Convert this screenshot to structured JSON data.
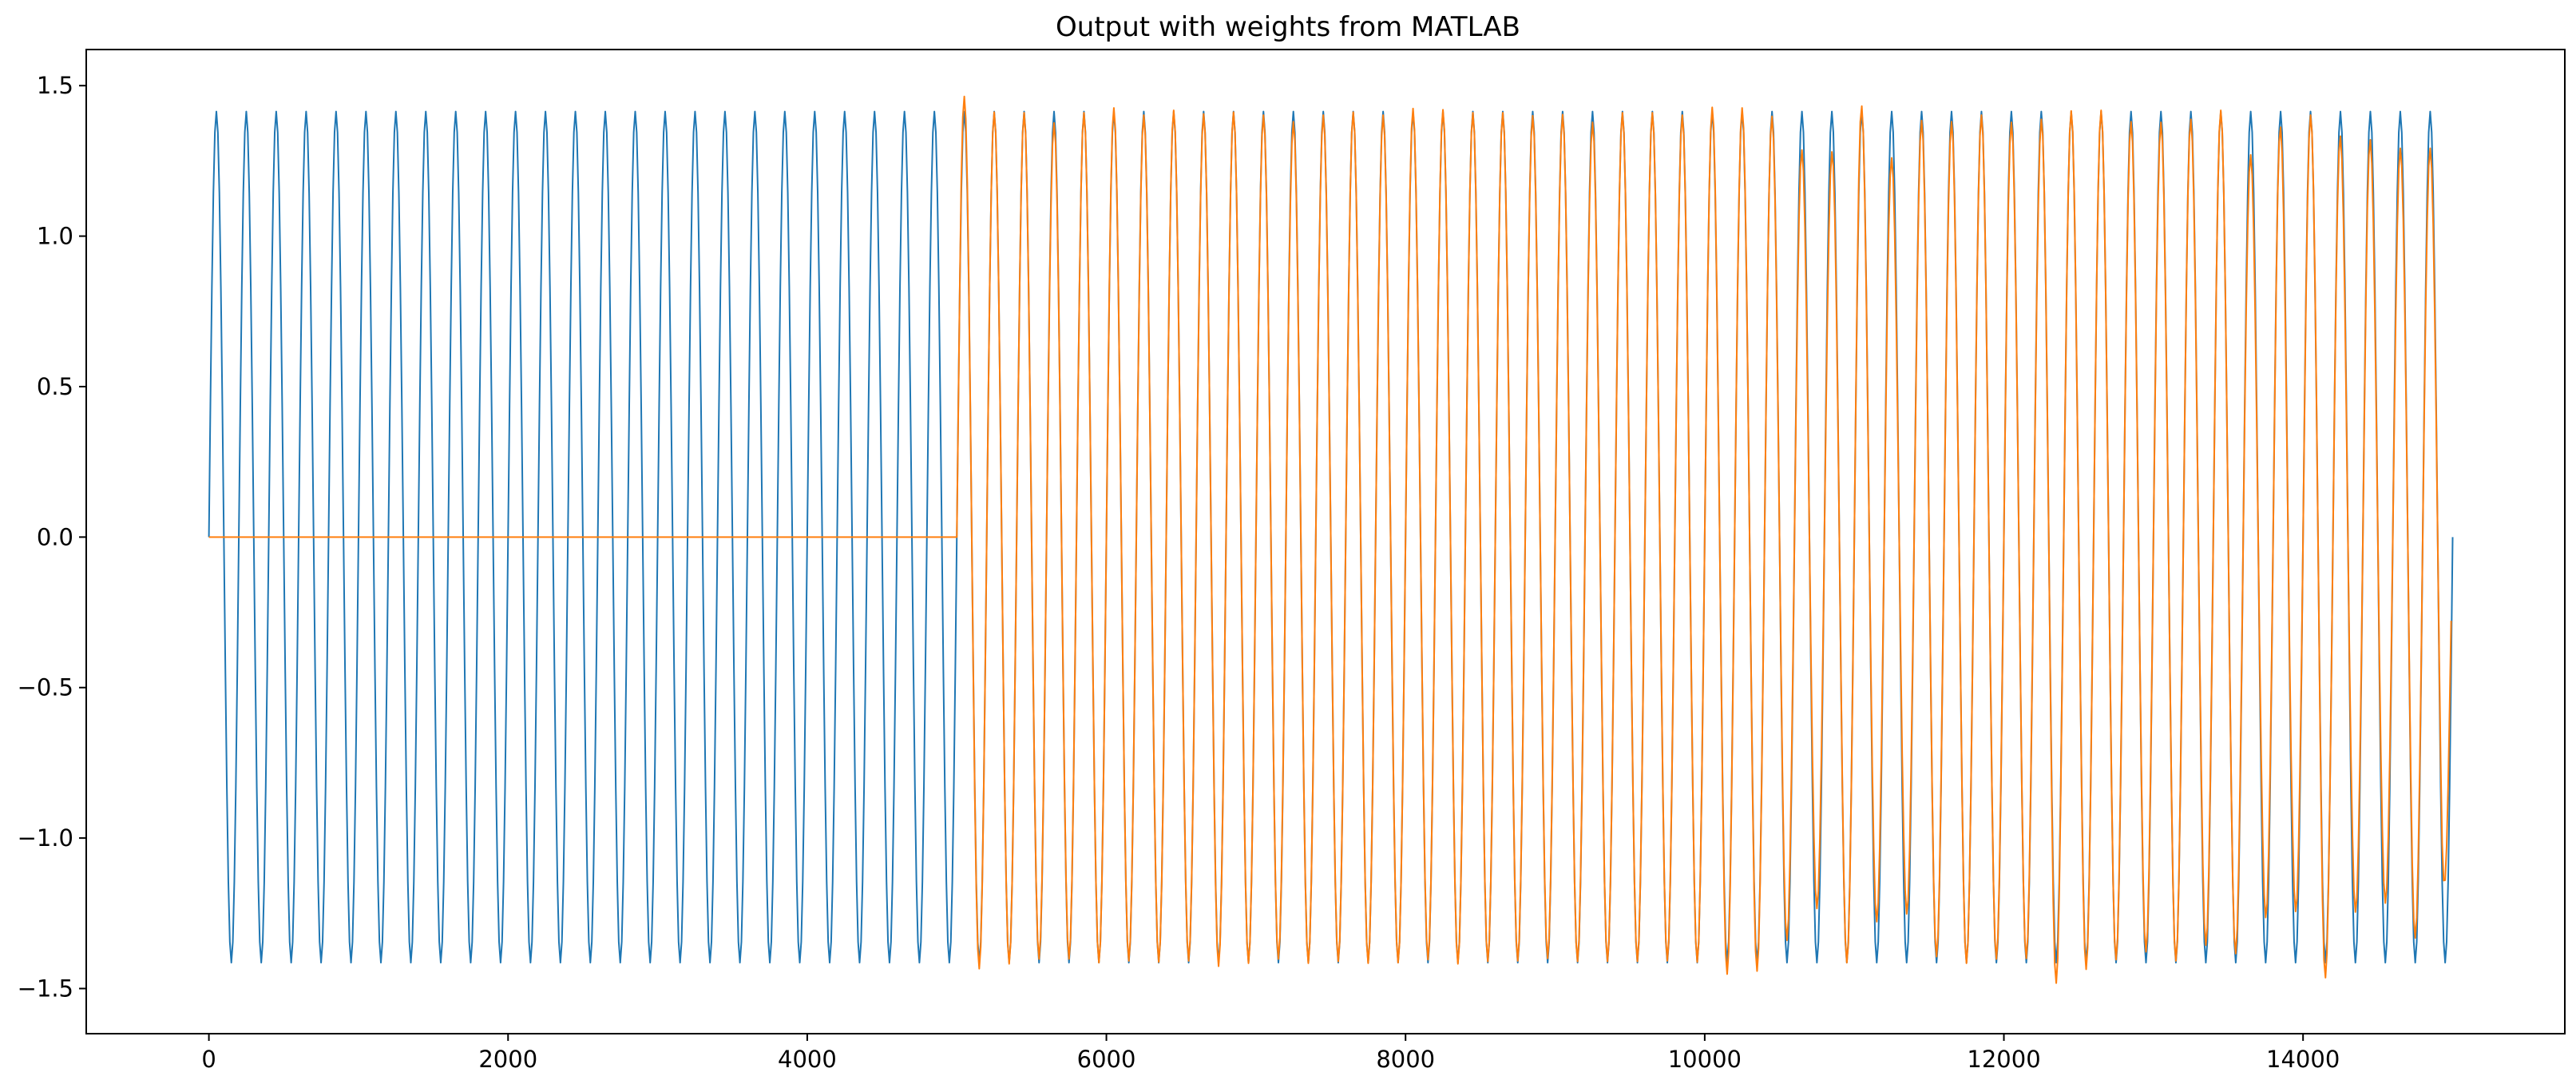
{
  "chart_data": {
    "type": "line",
    "title": "Output with weights from MATLAB",
    "xlabel": "",
    "ylabel": "",
    "xlim": [
      -820,
      15750
    ],
    "ylim": [
      -1.65,
      1.62
    ],
    "xticks": [
      0,
      2000,
      4000,
      6000,
      8000,
      10000,
      12000,
      14000
    ],
    "xtick_labels": [
      "0",
      "2000",
      "4000",
      "6000",
      "8000",
      "10000",
      "12000",
      "14000"
    ],
    "yticks": [
      -1.5,
      -1.0,
      -0.5,
      0.0,
      0.5,
      1.0,
      1.5
    ],
    "ytick_labels": [
      "−1.5",
      "−1.0",
      "−0.5",
      "0.0",
      "0.5",
      "1.0",
      "1.5"
    ],
    "grid": false,
    "legend": "none",
    "series": [
      {
        "color": "#1f77b4",
        "description": "reference sine, amplitude 1.414, period 200 samples, samples 0–15000",
        "x_start": 0,
        "x_end": 15000,
        "step": 10,
        "amplitude": 1.414,
        "period": 200
      },
      {
        "color": "#ff7f0e",
        "description": "filter output: 0 for samples 0–5000, then tracks the reference with small peak errors",
        "x_start": 0,
        "x_end": 14990,
        "onset": 5000,
        "step": 10,
        "amplitude": 1.414,
        "period": 200,
        "peaks": [
          [
            5010,
            1.38
          ],
          [
            5030,
            1.47
          ],
          [
            5130,
            -1.44
          ],
          [
            5230,
            1.41
          ],
          [
            5330,
            -1.42
          ],
          [
            5430,
            1.41
          ],
          [
            5530,
            -1.41
          ],
          [
            5630,
            1.37
          ],
          [
            5730,
            -1.4
          ],
          [
            5830,
            1.41
          ],
          [
            5930,
            -1.41
          ],
          [
            6030,
            1.43
          ],
          [
            6130,
            -1.41
          ],
          [
            6230,
            1.4
          ],
          [
            6330,
            -1.41
          ],
          [
            6430,
            1.42
          ],
          [
            6530,
            -1.41
          ],
          [
            6630,
            1.4
          ],
          [
            6730,
            -1.43
          ],
          [
            6830,
            1.41
          ],
          [
            6930,
            -1.42
          ],
          [
            7030,
            1.4
          ],
          [
            7130,
            -1.41
          ],
          [
            7230,
            1.37
          ],
          [
            7330,
            -1.42
          ],
          [
            7430,
            1.4
          ],
          [
            7530,
            -1.41
          ],
          [
            7630,
            1.41
          ],
          [
            7730,
            -1.42
          ],
          [
            7830,
            1.4
          ],
          [
            7930,
            -1.41
          ],
          [
            8030,
            1.43
          ],
          [
            8130,
            -1.4
          ],
          [
            8230,
            1.42
          ],
          [
            8330,
            -1.42
          ],
          [
            8430,
            1.41
          ],
          [
            8530,
            -1.41
          ],
          [
            8630,
            1.41
          ],
          [
            8730,
            -1.41
          ],
          [
            8830,
            1.4
          ],
          [
            8930,
            -1.4
          ],
          [
            9030,
            1.4
          ],
          [
            9130,
            -1.42
          ],
          [
            9230,
            1.37
          ],
          [
            9330,
            -1.41
          ],
          [
            9430,
            1.41
          ],
          [
            9530,
            -1.41
          ],
          [
            9630,
            1.41
          ],
          [
            9730,
            -1.41
          ],
          [
            9830,
            1.4
          ],
          [
            9930,
            -1.41
          ],
          [
            10030,
            1.42
          ],
          [
            10130,
            -1.46
          ],
          [
            10230,
            1.42
          ],
          [
            10330,
            -1.45
          ],
          [
            10430,
            1.41
          ],
          [
            10530,
            -1.35
          ],
          [
            10630,
            1.3
          ],
          [
            10730,
            -1.23
          ],
          [
            10830,
            1.25
          ],
          [
            10930,
            -1.4
          ],
          [
            11030,
            1.47
          ],
          [
            11130,
            -1.28
          ],
          [
            11230,
            1.27
          ],
          [
            11330,
            -1.22
          ],
          [
            11430,
            1.38
          ],
          [
            11530,
            -1.4
          ],
          [
            11630,
            1.37
          ],
          [
            11730,
            -1.42
          ],
          [
            11830,
            1.4
          ],
          [
            11930,
            -1.41
          ],
          [
            12030,
            1.37
          ],
          [
            12130,
            -1.41
          ],
          [
            12230,
            1.36
          ],
          [
            12330,
            -1.5
          ],
          [
            12430,
            1.41
          ],
          [
            12530,
            -1.44
          ],
          [
            12630,
            1.42
          ],
          [
            12730,
            -1.41
          ],
          [
            12830,
            1.38
          ],
          [
            12930,
            -1.38
          ],
          [
            13030,
            1.37
          ],
          [
            13130,
            -1.41
          ],
          [
            13230,
            1.4
          ],
          [
            13330,
            -1.34
          ],
          [
            13430,
            1.42
          ],
          [
            13530,
            -1.41
          ],
          [
            13630,
            1.28
          ],
          [
            13730,
            -1.23
          ],
          [
            13830,
            1.4
          ],
          [
            13930,
            -1.21
          ],
          [
            14030,
            1.38
          ],
          [
            14130,
            -1.49
          ],
          [
            14230,
            1.36
          ],
          [
            14330,
            -1.22
          ],
          [
            14430,
            1.35
          ],
          [
            14530,
            -1.2
          ],
          [
            14630,
            1.28
          ],
          [
            14730,
            -1.34
          ],
          [
            14830,
            1.3
          ],
          [
            14930,
            -1.26
          ],
          [
            14990,
            -0.9
          ]
        ]
      }
    ]
  }
}
